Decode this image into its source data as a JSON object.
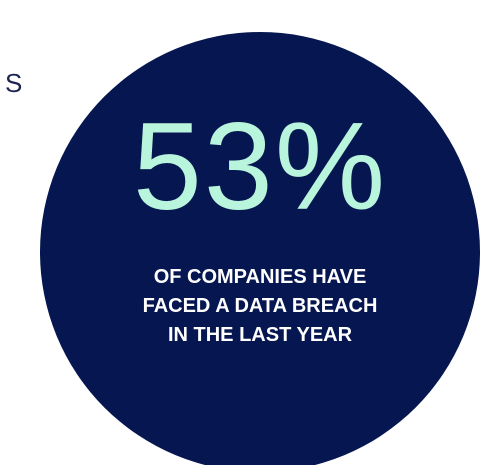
{
  "edge_text": "S",
  "stat": {
    "value": "53%",
    "caption_lines": [
      "OF COMPANIES HAVE",
      "FACED A DATA BREACH",
      "IN THE LAST YEAR"
    ]
  },
  "colors": {
    "circle": "#061650",
    "value": "#b9f5dc",
    "caption": "#ffffff",
    "edge_text": "#1b2550"
  }
}
